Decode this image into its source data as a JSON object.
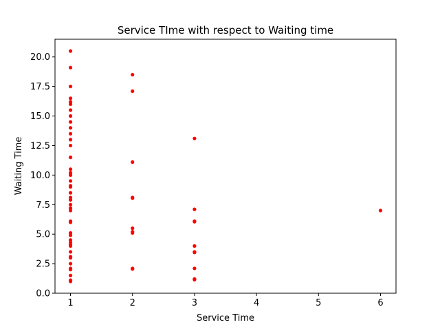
{
  "chart_data": {
    "type": "scatter",
    "title": "Service TIme with respect to Waiting time",
    "xlabel": "Service Time",
    "ylabel": "Waiting Time",
    "xlim": [
      0.75,
      6.25
    ],
    "ylim": [
      0.0,
      21.5
    ],
    "x_ticks": [
      1,
      2,
      3,
      4,
      5,
      6
    ],
    "y_ticks": [
      0.0,
      2.5,
      5.0,
      7.5,
      10.0,
      12.5,
      15.0,
      17.5,
      20.0
    ],
    "x_tick_labels": [
      "1",
      "2",
      "3",
      "4",
      "5",
      "6"
    ],
    "y_tick_labels": [
      "0.0",
      "2.5",
      "5.0",
      "7.5",
      "10.0",
      "12.5",
      "15.0",
      "17.5",
      "20.0"
    ],
    "grid": false,
    "color": "#ff0000",
    "series": [
      {
        "points": [
          [
            1,
            20.5
          ],
          [
            1,
            19.1
          ],
          [
            1,
            17.5
          ],
          [
            1,
            16.5
          ],
          [
            1,
            16.2
          ],
          [
            1,
            16.0
          ],
          [
            1,
            15.5
          ],
          [
            1,
            15.0
          ],
          [
            1,
            14.5
          ],
          [
            1,
            14.0
          ],
          [
            1,
            13.5
          ],
          [
            1,
            13.0
          ],
          [
            1,
            12.5
          ],
          [
            1,
            11.5
          ],
          [
            1,
            10.5
          ],
          [
            1,
            10.2
          ],
          [
            1,
            10.0
          ],
          [
            1,
            9.5
          ],
          [
            1,
            9.1
          ],
          [
            1,
            9.0
          ],
          [
            1,
            8.5
          ],
          [
            1,
            8.1
          ],
          [
            1,
            7.9
          ],
          [
            1,
            7.5
          ],
          [
            1,
            7.2
          ],
          [
            1,
            7.0
          ],
          [
            1,
            6.1
          ],
          [
            1,
            6.0
          ],
          [
            1,
            5.1
          ],
          [
            1,
            4.9
          ],
          [
            1,
            4.5
          ],
          [
            1,
            4.3
          ],
          [
            1,
            4.1
          ],
          [
            1,
            4.0
          ],
          [
            1,
            3.5
          ],
          [
            1,
            3.1
          ],
          [
            1,
            3.0
          ],
          [
            1,
            2.5
          ],
          [
            1,
            2.1
          ],
          [
            1,
            2.0
          ],
          [
            1,
            1.5
          ],
          [
            1,
            1.1
          ],
          [
            1,
            1.0
          ],
          [
            2,
            18.5
          ],
          [
            2,
            17.1
          ],
          [
            2,
            11.1
          ],
          [
            2,
            8.1
          ],
          [
            2,
            8.05
          ],
          [
            2,
            5.5
          ],
          [
            2,
            5.2
          ],
          [
            2,
            5.1
          ],
          [
            2,
            2.1
          ],
          [
            2,
            2.05
          ],
          [
            3,
            13.1
          ],
          [
            3,
            7.1
          ],
          [
            3,
            6.1
          ],
          [
            3,
            6.05
          ],
          [
            3,
            4.0
          ],
          [
            3,
            3.5
          ],
          [
            3,
            3.45
          ],
          [
            3,
            2.1
          ],
          [
            3,
            1.2
          ],
          [
            3,
            1.15
          ],
          [
            6,
            7.0
          ]
        ]
      }
    ]
  }
}
